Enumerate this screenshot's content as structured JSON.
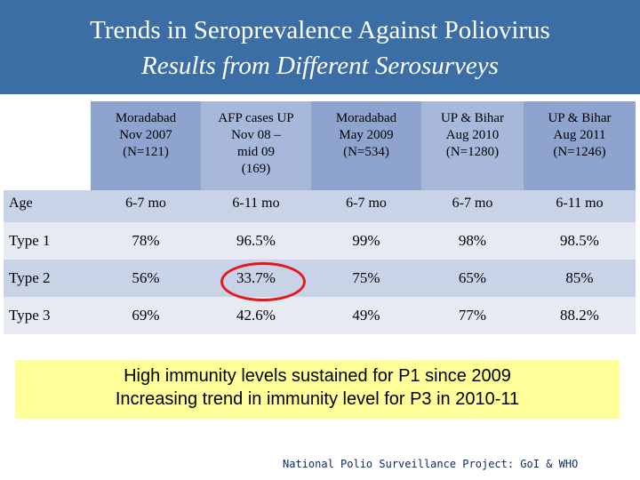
{
  "title": {
    "line1": "Trends in Seroprevalence Against Poliovirus",
    "line2": "Results from Different Serosurveys"
  },
  "table": {
    "columns": [
      {
        "lines": [
          "Moradabad",
          "Nov 2007",
          "(N=121)"
        ]
      },
      {
        "lines": [
          "AFP cases UP",
          "Nov 08 –",
          "mid 09",
          "(169)"
        ]
      },
      {
        "lines": [
          "Moradabad",
          "May 2009",
          "(N=534)"
        ]
      },
      {
        "lines": [
          "UP & Bihar",
          "Aug 2010",
          "(N=1280)"
        ]
      },
      {
        "lines": [
          "UP & Bihar",
          "Aug 2011",
          "(N=1246)"
        ]
      }
    ],
    "rows": [
      {
        "label": "Age",
        "values": [
          "6-7 mo",
          "6-11 mo",
          "6-7 mo",
          "6-7 mo",
          "6-11 mo"
        ]
      },
      {
        "label": "Type 1",
        "values": [
          "78%",
          "96.5%",
          "99%",
          "98%",
          "98.5%"
        ]
      },
      {
        "label": "Type 2",
        "values": [
          "56%",
          "33.7%",
          "75%",
          "65%",
          "85%"
        ]
      },
      {
        "label": "Type 3",
        "values": [
          "69%",
          "42.6%",
          "49%",
          "77%",
          "88.2%"
        ]
      }
    ]
  },
  "note": {
    "line1": "High immunity levels sustained for P1 since 2009",
    "line2": "Increasing trend in immunity level for P3 in 2010-11"
  },
  "footer": "National Polio Surveillance Project: GoI & WHO"
}
